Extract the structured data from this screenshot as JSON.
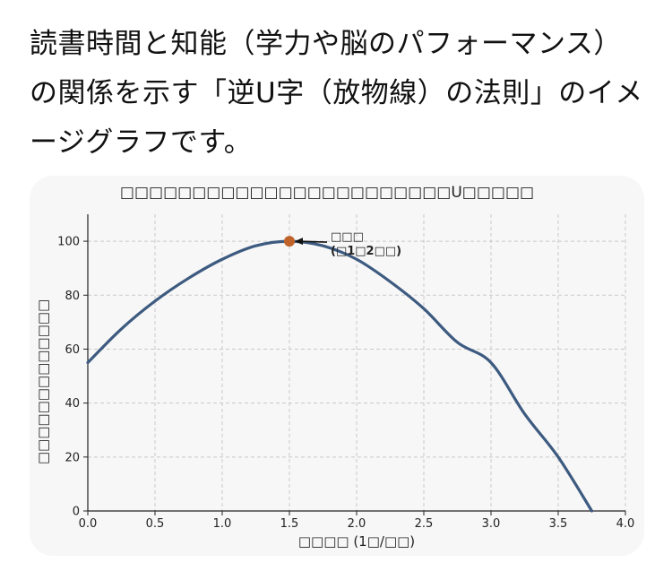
{
  "message": {
    "text": "読書時間と知能（学力や脳のパフォーマンス）の関係を示す「逆U字（放物線）の法則」のイメージグラフです。"
  },
  "chart_data": {
    "type": "line",
    "title": "□□□□□□□□□□□□□□□□□□□□□□□U□□□□□",
    "xlabel": "□□□□ (1□/□□)",
    "ylabel": "□□□□□□□□□□□□□",
    "xlim": [
      0,
      4
    ],
    "ylim": [
      0,
      110
    ],
    "xticks": [
      0.0,
      0.5,
      1.0,
      1.5,
      2.0,
      2.5,
      3.0,
      3.5,
      4.0
    ],
    "xtick_labels": [
      "0.0",
      "0.5",
      "1.0",
      "1.5",
      "2.0",
      "2.5",
      "3.0",
      "3.5",
      "4.0"
    ],
    "yticks": [
      0,
      20,
      40,
      60,
      80,
      100
    ],
    "ytick_labels": [
      "0",
      "20",
      "40",
      "60",
      "80",
      "100"
    ],
    "grid": true,
    "series": [
      {
        "x": [
          0.0,
          0.25,
          0.5,
          0.75,
          1.0,
          1.25,
          1.5,
          1.75,
          2.0,
          2.25,
          2.5,
          2.75,
          3.0,
          3.25,
          3.5,
          3.75
        ],
        "values": [
          55.0,
          67.5,
          77.8,
          86.3,
          93.3,
          98.3,
          100.0,
          98.3,
          93.3,
          85.0,
          75.0,
          62.5,
          55.0,
          36.0,
          20.0,
          0.0
        ],
        "color": "#3d5a80"
      }
    ],
    "peak": {
      "x": 1.5,
      "y": 100,
      "color": "#c0632a",
      "label_line1": "□□□",
      "label_line2": "(□1□2□□)"
    }
  }
}
